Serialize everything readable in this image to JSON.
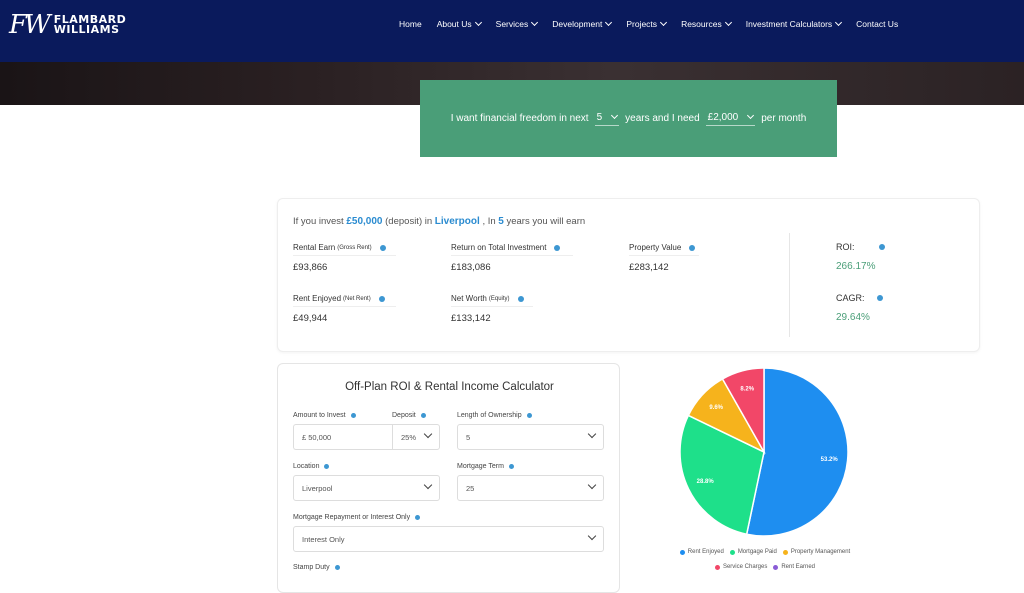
{
  "brand": {
    "mark": "FW",
    "line1": "FLAMBARD",
    "line2": "WILLIAMS"
  },
  "nav": [
    {
      "label": "Home",
      "dropdown": false
    },
    {
      "label": "About Us",
      "dropdown": true
    },
    {
      "label": "Services",
      "dropdown": true
    },
    {
      "label": "Development",
      "dropdown": true
    },
    {
      "label": "Projects",
      "dropdown": true
    },
    {
      "label": "Resources",
      "dropdown": true
    },
    {
      "label": "Investment Calculators",
      "dropdown": true
    },
    {
      "label": "Contact Us",
      "dropdown": false
    }
  ],
  "freedom": {
    "prefix": "I want financial freedom in next",
    "years": "5",
    "middle": "years and I need",
    "amount": "£2,000",
    "suffix": "per month"
  },
  "intro": {
    "t1": "If you invest",
    "amount": "£50,000",
    "t2": "(deposit) in",
    "location": "Liverpool",
    "t3": ", In",
    "years": "5",
    "t4": "years you will earn"
  },
  "metrics": {
    "rental_earn": {
      "label": "Rental Earn",
      "sub": "(Gross Rent)",
      "value": "£93,866"
    },
    "return_total": {
      "label": "Return on Total Investment",
      "value": "£183,086"
    },
    "property_value": {
      "label": "Property Value",
      "value": "£283,142"
    },
    "rent_enjoyed": {
      "label": "Rent Enjoyed",
      "sub": "(Net Rent)",
      "value": "£49,944"
    },
    "net_worth": {
      "label": "Net Worth",
      "sub": "(Equity)",
      "value": "£133,142"
    },
    "roi": {
      "label": "ROI:",
      "value": "266.17%"
    },
    "cagr": {
      "label": "CAGR:",
      "value": "29.64%"
    }
  },
  "calculator": {
    "title": "Off-Plan ROI & Rental Income Calculator",
    "amount_label": "Amount to Invest",
    "amount_value": "£ 50,000",
    "deposit_label": "Deposit",
    "deposit_value": "25%",
    "ownership_label": "Length of Ownership",
    "ownership_value": "5",
    "location_label": "Location",
    "location_value": "Liverpool",
    "mortgage_term_label": "Mortgage Term",
    "mortgage_term_value": "25",
    "repayment_label": "Mortgage Repayment or Interest Only",
    "repayment_value": "Interest Only",
    "stamp_label": "Stamp Duty"
  },
  "chart_data": {
    "type": "pie",
    "series": [
      {
        "name": "Rent Enjoyed",
        "value": 53.2,
        "label": "53.2%",
        "color": "#1e8ef0"
      },
      {
        "name": "Mortgage Paid",
        "value": 28.8,
        "label": "28.8%",
        "color": "#1ee08a"
      },
      {
        "name": "Property Management",
        "value": 9.6,
        "label": "9.6%",
        "color": "#f6b31c"
      },
      {
        "name": "Service Charges",
        "value": 8.2,
        "label": "8.2%",
        "color": "#f24768"
      },
      {
        "name": "Rent Earned",
        "value": 0,
        "label": "",
        "color": "#8a5cd6"
      }
    ]
  }
}
